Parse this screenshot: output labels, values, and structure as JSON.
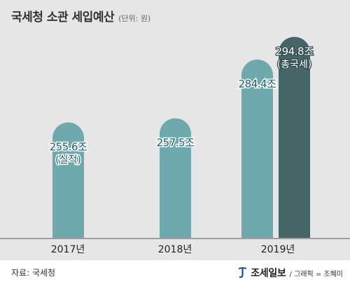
{
  "header": {
    "title": "국세청 소관 세입예산",
    "unit": "(단위: 원)"
  },
  "footer": {
    "source": "자료: 국세청",
    "brand": "조세일보",
    "credit": "/ 그래픽 = 조혜미"
  },
  "colors": {
    "panel": "#e6e6e6",
    "bar_teal": "#6ea9ad",
    "bar_dark": "#466566",
    "axis": "#555555",
    "label": "#1e5b6b",
    "logo_blue": "#1d4f91"
  },
  "chart_data": {
    "type": "bar",
    "title": "국세청 소관 세입예산",
    "unit": "(단위: 원)",
    "categories": [
      "2017년",
      "2018년",
      "2019년"
    ],
    "bars": [
      {
        "category": "2017년",
        "value": 255.6,
        "label": "255.6조",
        "sublabel": "(실적)",
        "color": "#6ea9ad"
      },
      {
        "category": "2018년",
        "value": 257.5,
        "label": "257.5조",
        "sublabel": "",
        "color": "#6ea9ad"
      },
      {
        "category": "2019년",
        "value": 284.4,
        "label": "284.4조",
        "sublabel": "",
        "color": "#6ea9ad"
      },
      {
        "category": "2019년",
        "value": 294.8,
        "label": "294.8조",
        "sublabel": "(총국세)",
        "color": "#466566"
      }
    ]
  }
}
